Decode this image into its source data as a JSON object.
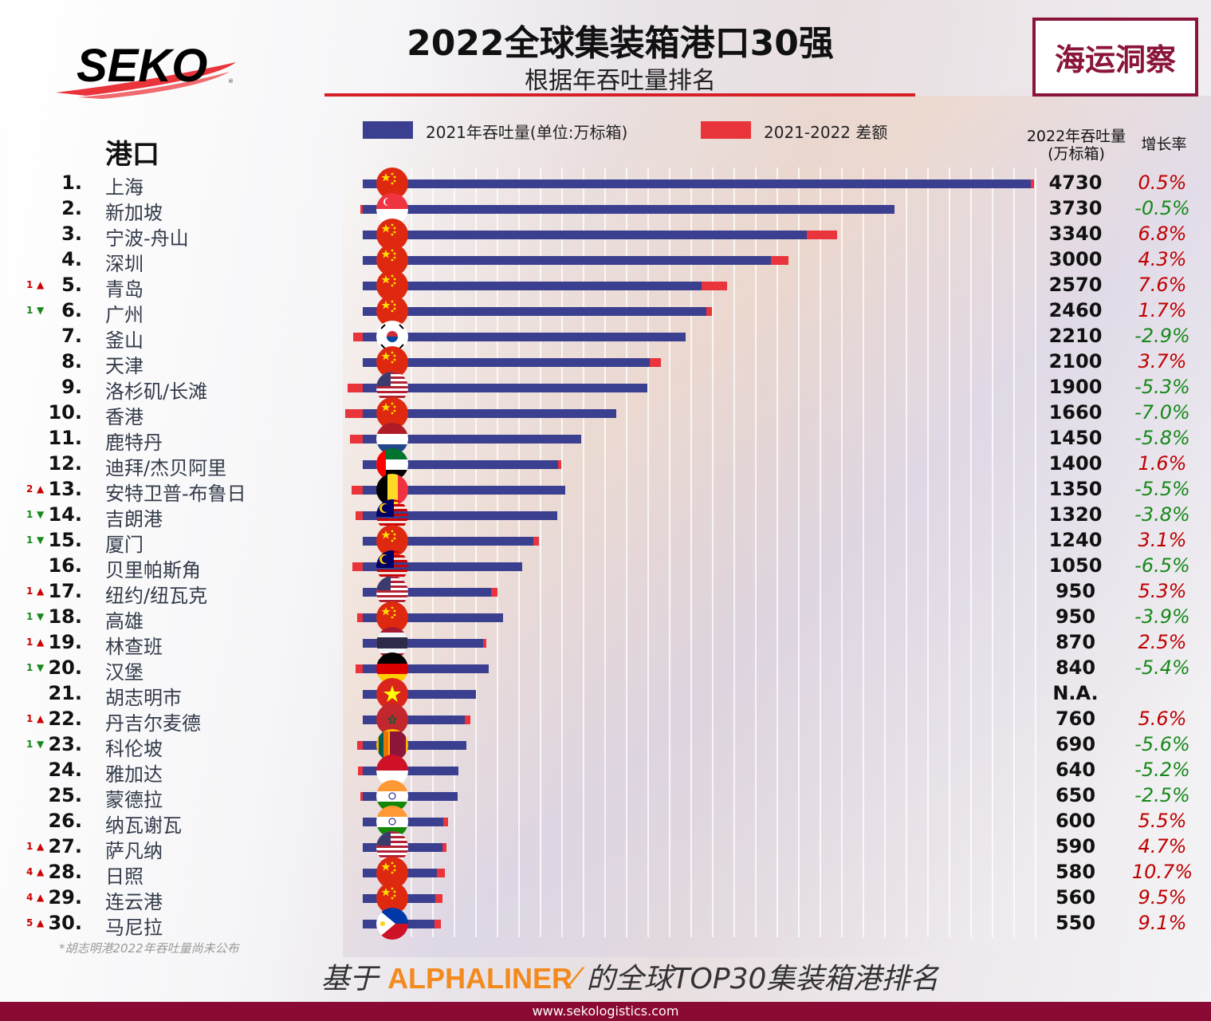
{
  "header": {
    "title": "2022全球集装箱港口30强",
    "subtitle": "根据年吞吐量排名",
    "brand_box": "海运洞察",
    "logo_text": "SEKO"
  },
  "colors": {
    "bar_2021": "#3b3f8f",
    "bar_diff": "#e8343a",
    "positive": "#c00000",
    "negative": "#17891b",
    "rank_up": "#cc0000",
    "rank_down": "#17891b",
    "footer": "#8a0a33",
    "title_rule": "#d62027",
    "alphaliner": "#f28a1d"
  },
  "columns": {
    "port": "港口",
    "volume": "2022年吞吐量",
    "volume_unit": "(万标箱)",
    "growth": "增长率"
  },
  "footnote": "*胡志明港2022年吞吐量尚未公布",
  "source": {
    "prefix": "基于",
    "brand": "ALPHALINER",
    "suffix": "的全球TOP30集装箱港排名"
  },
  "footer": {
    "website": "www.sekologistics.com"
  },
  "chart_data": {
    "type": "bar",
    "orientation": "horizontal",
    "legend": [
      "2021年吞吐量(单位:万标箱)",
      "2021-2022 差额"
    ],
    "legend_placement": "top",
    "grid": true,
    "rows": [
      {
        "rank": "1.",
        "name": "上海",
        "flag": "CN",
        "change": null,
        "value_2022": "4730",
        "growth": "0.5%",
        "g": 0.5
      },
      {
        "rank": "2.",
        "name": "新加坡",
        "flag": "SG",
        "change": null,
        "value_2022": "3730",
        "growth": "-0.5%",
        "g": -0.5
      },
      {
        "rank": "3.",
        "name": "宁波-舟山",
        "flag": "CN",
        "change": null,
        "value_2022": "3340",
        "growth": "6.8%",
        "g": 6.8
      },
      {
        "rank": "4.",
        "name": "深圳",
        "flag": "CN",
        "change": null,
        "value_2022": "3000",
        "growth": "4.3%",
        "g": 4.3
      },
      {
        "rank": "5.",
        "name": "青岛",
        "flag": "CN",
        "change": {
          "n": "1",
          "dir": "up"
        },
        "value_2022": "2570",
        "growth": "7.6%",
        "g": 7.6
      },
      {
        "rank": "6.",
        "name": "广州",
        "flag": "CN",
        "change": {
          "n": "1",
          "dir": "down"
        },
        "value_2022": "2460",
        "growth": "1.7%",
        "g": 1.7
      },
      {
        "rank": "7.",
        "name": "釜山",
        "flag": "KR",
        "change": null,
        "value_2022": "2210",
        "growth": "-2.9%",
        "g": -2.9
      },
      {
        "rank": "8.",
        "name": "天津",
        "flag": "CN",
        "change": null,
        "value_2022": "2100",
        "growth": "3.7%",
        "g": 3.7
      },
      {
        "rank": "9.",
        "name": "洛杉矶/长滩",
        "flag": "US",
        "change": null,
        "value_2022": "1900",
        "growth": "-5.3%",
        "g": -5.3
      },
      {
        "rank": "10.",
        "name": "香港",
        "flag": "CN",
        "change": null,
        "value_2022": "1660",
        "growth": "-7.0%",
        "g": -7.0
      },
      {
        "rank": "11.",
        "name": "鹿特丹",
        "flag": "NL",
        "change": null,
        "value_2022": "1450",
        "growth": "-5.8%",
        "g": -5.8
      },
      {
        "rank": "12.",
        "name": "迪拜/杰贝阿里",
        "flag": "AE",
        "change": null,
        "value_2022": "1400",
        "growth": "1.6%",
        "g": 1.6
      },
      {
        "rank": "13.",
        "name": "安特卫普-布鲁日",
        "flag": "BE",
        "change": {
          "n": "2",
          "dir": "up"
        },
        "value_2022": "1350",
        "growth": "-5.5%",
        "g": -5.5
      },
      {
        "rank": "14.",
        "name": "吉朗港",
        "flag": "MY",
        "change": {
          "n": "1",
          "dir": "down"
        },
        "value_2022": "1320",
        "growth": "-3.8%",
        "g": -3.8
      },
      {
        "rank": "15.",
        "name": "厦门",
        "flag": "CN",
        "change": {
          "n": "1",
          "dir": "down"
        },
        "value_2022": "1240",
        "growth": "3.1%",
        "g": 3.1
      },
      {
        "rank": "16.",
        "name": "贝里帕斯角",
        "flag": "MY",
        "change": null,
        "value_2022": "1050",
        "growth": "-6.5%",
        "g": -6.5
      },
      {
        "rank": "17.",
        "name": "纽约/纽瓦克",
        "flag": "US",
        "change": {
          "n": "1",
          "dir": "up"
        },
        "value_2022": "950",
        "growth": "5.3%",
        "g": 5.3
      },
      {
        "rank": "18.",
        "name": "高雄",
        "flag": "CN",
        "change": {
          "n": "1",
          "dir": "down"
        },
        "value_2022": "950",
        "growth": "-3.9%",
        "g": -3.9
      },
      {
        "rank": "19.",
        "name": "林查班",
        "flag": "TH",
        "change": {
          "n": "1",
          "dir": "up"
        },
        "value_2022": "870",
        "growth": "2.5%",
        "g": 2.5
      },
      {
        "rank": "20.",
        "name": "汉堡",
        "flag": "DE",
        "change": {
          "n": "1",
          "dir": "down"
        },
        "value_2022": "840",
        "growth": "-5.4%",
        "g": -5.4
      },
      {
        "rank": "21.",
        "name": "胡志明市",
        "flag": "VN",
        "change": null,
        "value_2022": "N.A.",
        "growth": "",
        "g": null,
        "value_2021": 800
      },
      {
        "rank": "22.",
        "name": "丹吉尔麦德",
        "flag": "MA",
        "change": {
          "n": "1",
          "dir": "up"
        },
        "value_2022": "760",
        "growth": "5.6%",
        "g": 5.6
      },
      {
        "rank": "23.",
        "name": "科伦坡",
        "flag": "LK",
        "change": {
          "n": "1",
          "dir": "down"
        },
        "value_2022": "690",
        "growth": "-5.6%",
        "g": -5.6
      },
      {
        "rank": "24.",
        "name": "雅加达",
        "flag": "ID",
        "change": null,
        "value_2022": "640",
        "growth": "-5.2%",
        "g": -5.2
      },
      {
        "rank": "25.",
        "name": "蒙德拉",
        "flag": "IN",
        "change": null,
        "value_2022": "650",
        "growth": "-2.5%",
        "g": -2.5
      },
      {
        "rank": "26.",
        "name": "纳瓦谢瓦",
        "flag": "IN",
        "change": null,
        "value_2022": "600",
        "growth": "5.5%",
        "g": 5.5
      },
      {
        "rank": "27.",
        "name": "萨凡纳",
        "flag": "US",
        "change": {
          "n": "1",
          "dir": "up"
        },
        "value_2022": "590",
        "growth": "4.7%",
        "g": 4.7
      },
      {
        "rank": "28.",
        "name": "日照",
        "flag": "CN",
        "change": {
          "n": "4",
          "dir": "up"
        },
        "value_2022": "580",
        "growth": "10.7%",
        "g": 10.7
      },
      {
        "rank": "29.",
        "name": "连云港",
        "flag": "CN",
        "change": {
          "n": "4",
          "dir": "up"
        },
        "value_2022": "560",
        "growth": "9.5%",
        "g": 9.5
      },
      {
        "rank": "30.",
        "name": "马尼拉",
        "flag": "PH",
        "change": {
          "n": "5",
          "dir": "up"
        },
        "value_2022": "550",
        "growth": "9.1%",
        "g": 9.1
      }
    ]
  }
}
